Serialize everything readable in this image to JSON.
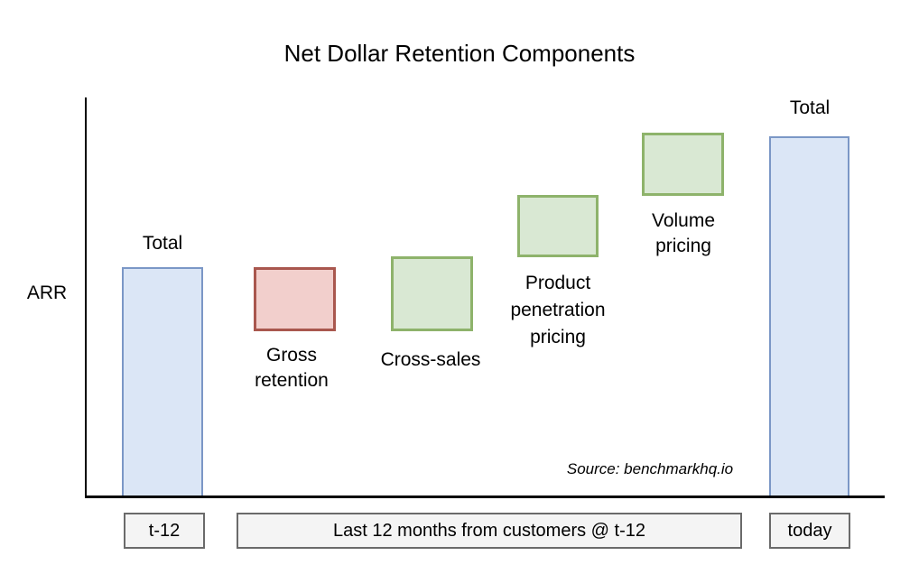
{
  "title": "Net Dollar Retention Components",
  "y_axis_label": "ARR",
  "source_note": "Source: benchmarkhq.io",
  "bars": {
    "total_left": {
      "label": "Total"
    },
    "gross_retention": {
      "label": "Gross retention"
    },
    "cross_sales": {
      "label": "Cross-sales"
    },
    "product_penetration": {
      "label": "Product penetration pricing"
    },
    "volume_pricing": {
      "label": "Volume pricing"
    },
    "total_right": {
      "label": "Total"
    }
  },
  "x_axis_tags": {
    "left": "t-12",
    "middle": "Last 12 months from customers @ t-12",
    "right": "today"
  },
  "colors": {
    "total_fill": "#dbe6f6",
    "total_border": "#7b97c6",
    "decrease_fill": "#f2cfcc",
    "decrease_border": "#a9574e",
    "increase_fill": "#d9e8d3",
    "increase_border": "#8eb36b",
    "tag_fill": "#f4f4f4",
    "tag_border": "#6a6a6a",
    "axis": "#000000"
  },
  "chart_data": {
    "type": "bar",
    "variant": "waterfall",
    "title": "Net Dollar Retention Components",
    "xlabel": "",
    "ylabel": "ARR",
    "value_axis_note": "no numeric ticks shown; values are relative estimates (fraction of plot height, 0-1)",
    "ylim": [
      0,
      1
    ],
    "grid": false,
    "legend": false,
    "categories": [
      "Total (t-12)",
      "Gross retention",
      "Cross-sales",
      "Product penetration pricing",
      "Volume pricing",
      "Total (today)"
    ],
    "segments": [
      {
        "label": "Total",
        "kind": "total",
        "start": 0,
        "end": 0.576,
        "fill": "#dbe6f6",
        "border": "#7b97c6"
      },
      {
        "label": "Gross retention",
        "kind": "decrease",
        "start": 0.576,
        "end": 0.417,
        "fill": "#f2cfcc",
        "border": "#a9574e"
      },
      {
        "label": "Cross-sales",
        "kind": "increase",
        "start": 0.417,
        "end": 0.604,
        "fill": "#d9e8d3",
        "border": "#8eb36b"
      },
      {
        "label": "Product penetration pricing",
        "kind": "increase",
        "start": 0.601,
        "end": 0.757,
        "fill": "#d9e8d3",
        "border": "#8eb36b"
      },
      {
        "label": "Volume pricing",
        "kind": "increase",
        "start": 0.754,
        "end": 0.912,
        "fill": "#d9e8d3",
        "border": "#8eb36b"
      },
      {
        "label": "Total",
        "kind": "total",
        "start": 0,
        "end": 0.903,
        "fill": "#dbe6f6",
        "border": "#7b97c6"
      }
    ],
    "x_axis_annotations": [
      "t-12",
      "Last 12 months from customers @ t-12",
      "today"
    ],
    "annotations": [
      "Source: benchmarkhq.io"
    ]
  }
}
